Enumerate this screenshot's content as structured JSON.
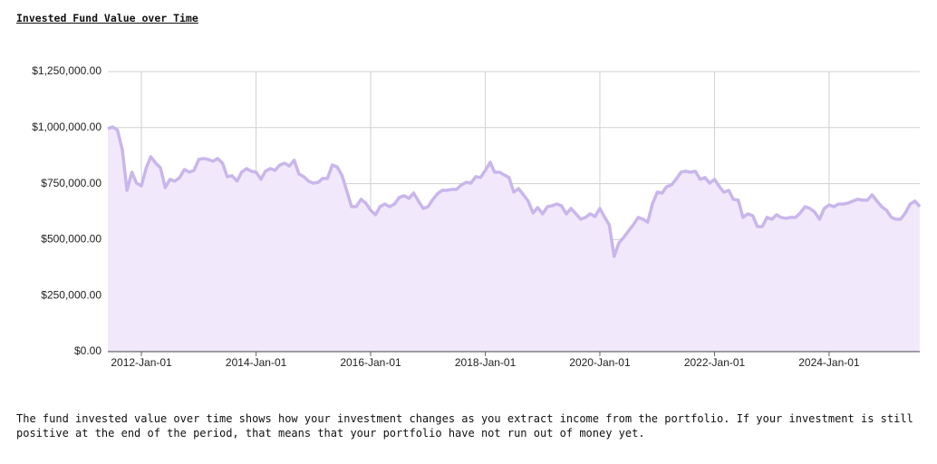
{
  "chart_data": {
    "type": "area",
    "title": "Invested Fund Value over Time",
    "x": [
      "2011-06-01",
      "2011-07-01",
      "2011-08-01",
      "2011-09-01",
      "2011-10-01",
      "2011-11-01",
      "2011-12-01",
      "2012-01-01",
      "2012-02-01",
      "2012-03-01",
      "2012-04-01",
      "2012-05-01",
      "2012-06-01",
      "2012-07-01",
      "2012-08-01",
      "2012-09-01",
      "2012-10-01",
      "2012-11-01",
      "2012-12-01",
      "2013-01-01",
      "2013-02-01",
      "2013-03-01",
      "2013-04-01",
      "2013-05-01",
      "2013-06-01",
      "2013-07-01",
      "2013-08-01",
      "2013-09-01",
      "2013-10-01",
      "2013-11-01",
      "2013-12-01",
      "2014-01-01",
      "2014-02-01",
      "2014-03-01",
      "2014-04-01",
      "2014-05-01",
      "2014-06-01",
      "2014-07-01",
      "2014-08-01",
      "2014-09-01",
      "2014-10-01",
      "2014-11-01",
      "2014-12-01",
      "2015-01-01",
      "2015-02-01",
      "2015-03-01",
      "2015-04-01",
      "2015-05-01",
      "2015-06-01",
      "2015-07-01",
      "2015-08-01",
      "2015-09-01",
      "2015-10-01",
      "2015-11-01",
      "2015-12-01",
      "2016-01-01",
      "2016-02-01",
      "2016-03-01",
      "2016-04-01",
      "2016-05-01",
      "2016-06-01",
      "2016-07-01",
      "2016-08-01",
      "2016-09-01",
      "2016-10-01",
      "2016-11-01",
      "2016-12-01",
      "2017-01-01",
      "2017-02-01",
      "2017-03-01",
      "2017-04-01",
      "2017-05-01",
      "2017-06-01",
      "2017-07-01",
      "2017-08-01",
      "2017-09-01",
      "2017-10-01",
      "2017-11-01",
      "2017-12-01",
      "2018-01-01",
      "2018-02-01",
      "2018-03-01",
      "2018-04-01",
      "2018-05-01",
      "2018-06-01",
      "2018-07-01",
      "2018-08-01",
      "2018-09-01",
      "2018-10-01",
      "2018-11-01",
      "2018-12-01",
      "2019-01-01",
      "2019-02-01",
      "2019-03-01",
      "2019-04-01",
      "2019-05-01",
      "2019-06-01",
      "2019-07-01",
      "2019-08-01",
      "2019-09-01",
      "2019-10-01",
      "2019-11-01",
      "2019-12-01",
      "2020-01-01",
      "2020-02-01",
      "2020-03-01",
      "2020-04-01",
      "2020-05-01",
      "2020-06-01",
      "2020-07-01",
      "2020-08-01",
      "2020-09-01",
      "2020-10-01",
      "2020-11-01",
      "2020-12-01",
      "2021-01-01",
      "2021-02-01",
      "2021-03-01",
      "2021-04-01",
      "2021-05-01",
      "2021-06-01",
      "2021-07-01",
      "2021-08-01",
      "2021-09-01",
      "2021-10-01",
      "2021-11-01",
      "2021-12-01",
      "2022-01-01",
      "2022-02-01",
      "2022-03-01",
      "2022-04-01",
      "2022-05-01",
      "2022-06-01",
      "2022-07-01",
      "2022-08-01",
      "2022-09-01",
      "2022-10-01",
      "2022-11-01",
      "2022-12-01",
      "2023-01-01",
      "2023-02-01",
      "2023-03-01",
      "2023-04-01",
      "2023-05-01",
      "2023-06-01",
      "2023-07-01",
      "2023-08-01",
      "2023-09-01",
      "2023-10-01",
      "2023-11-01",
      "2023-12-01",
      "2024-01-01",
      "2024-02-01",
      "2024-03-01",
      "2024-04-01",
      "2024-05-01",
      "2024-06-01",
      "2024-07-01",
      "2024-08-01",
      "2024-09-01",
      "2024-10-01",
      "2024-11-01",
      "2024-12-01",
      "2025-01-01",
      "2025-02-01",
      "2025-03-01",
      "2025-04-01",
      "2025-05-01",
      "2025-06-01",
      "2025-07-01",
      "2025-08-01"
    ],
    "values": [
      995000,
      1003000,
      990000,
      902000,
      720000,
      801000,
      752000,
      740000,
      821000,
      870000,
      841000,
      821000,
      732000,
      769000,
      761000,
      777000,
      813000,
      801000,
      809000,
      858000,
      862000,
      858000,
      850000,
      862000,
      841000,
      781000,
      785000,
      761000,
      801000,
      817000,
      805000,
      801000,
      769000,
      805000,
      817000,
      809000,
      833000,
      841000,
      829000,
      854000,
      793000,
      781000,
      761000,
      752000,
      756000,
      773000,
      773000,
      833000,
      825000,
      789000,
      720000,
      647000,
      647000,
      680000,
      663000,
      631000,
      611000,
      647000,
      659000,
      647000,
      659000,
      688000,
      696000,
      684000,
      708000,
      672000,
      639000,
      647000,
      680000,
      704000,
      720000,
      720000,
      724000,
      724000,
      744000,
      756000,
      752000,
      781000,
      777000,
      809000,
      845000,
      801000,
      801000,
      789000,
      777000,
      712000,
      728000,
      700000,
      672000,
      619000,
      643000,
      615000,
      647000,
      651000,
      659000,
      651000,
      615000,
      639000,
      615000,
      591000,
      599000,
      615000,
      603000,
      639000,
      599000,
      566000,
      425000,
      485000,
      510000,
      538000,
      566000,
      599000,
      591000,
      578000,
      659000,
      712000,
      708000,
      736000,
      744000,
      769000,
      801000,
      805000,
      801000,
      805000,
      769000,
      777000,
      752000,
      769000,
      736000,
      712000,
      720000,
      680000,
      676000,
      599000,
      615000,
      607000,
      558000,
      558000,
      599000,
      591000,
      611000,
      599000,
      595000,
      599000,
      599000,
      619000,
      647000,
      639000,
      623000,
      591000,
      639000,
      655000,
      647000,
      659000,
      659000,
      663000,
      672000,
      680000,
      676000,
      676000,
      700000,
      672000,
      647000,
      631000,
      599000,
      591000,
      591000,
      619000,
      659000,
      672000,
      647000
    ],
    "color": "#c9b6ec",
    "fill_color": "#f1e9fb",
    "xlim": [
      "2011-06-01",
      "2025-08-01"
    ],
    "xticks": [
      {
        "value": "2012-01-01",
        "label": "2012-Jan-01"
      },
      {
        "value": "2014-01-01",
        "label": "2014-Jan-01"
      },
      {
        "value": "2016-01-01",
        "label": "2016-Jan-01"
      },
      {
        "value": "2018-01-01",
        "label": "2018-Jan-01"
      },
      {
        "value": "2020-01-01",
        "label": "2020-Jan-01"
      },
      {
        "value": "2022-01-01",
        "label": "2022-Jan-01"
      },
      {
        "value": "2024-01-01",
        "label": "2024-Jan-01"
      }
    ],
    "ylim": [
      0,
      1250000
    ],
    "yticks": [
      {
        "value": 0,
        "label": "$0.00"
      },
      {
        "value": 250000,
        "label": "$250,000.00"
      },
      {
        "value": 500000,
        "label": "$500,000.00"
      },
      {
        "value": 750000,
        "label": "$750,000.00"
      },
      {
        "value": 1000000,
        "label": "$1,000,000.00"
      },
      {
        "value": 1250000,
        "label": "$1,250,000.00"
      }
    ],
    "grid": true
  },
  "description": "The fund invested value over time shows how your investment changes as you extract income from the portfolio. If your investment is still positive at the end of the period, that means that your portfolio have not run out of money yet."
}
